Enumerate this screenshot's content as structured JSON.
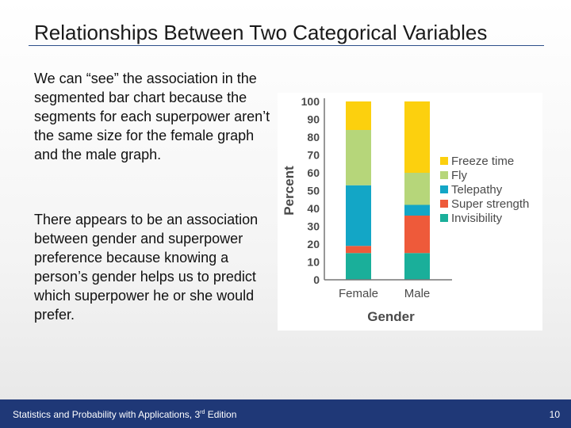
{
  "slide": {
    "title": "Relationships Between Two Categorical Variables",
    "paragraph1": "We can “see” the association in the segmented bar chart because the segments for each superpower aren’t the same size for the female graph and the male graph.",
    "paragraph2": "There appears to be an association between gender and superpower preference because knowing a person’s gender helps us to predict which superpower he or she would prefer."
  },
  "footer": {
    "book_prefix": "Statistics and Probability with Applications, 3",
    "edition_sup": "rd",
    "book_suffix": " Edition",
    "page_number": "10"
  },
  "chart_data": {
    "type": "bar",
    "stacked": true,
    "xlabel": "Gender",
    "ylabel": "Percent",
    "ylim": [
      0,
      100
    ],
    "yticks": [
      "0",
      "10",
      "20",
      "30",
      "40",
      "50",
      "60",
      "70",
      "80",
      "90",
      "100"
    ],
    "categories": [
      "Female",
      "Male"
    ],
    "legend_position": "right",
    "series": [
      {
        "name": "Invisibility",
        "color": "#1aaf9a",
        "values": [
          15,
          15
        ]
      },
      {
        "name": "Super strength",
        "color": "#ee5a3a",
        "values": [
          4,
          21
        ]
      },
      {
        "name": "Telepathy",
        "color": "#13a6c6",
        "values": [
          34,
          6
        ]
      },
      {
        "name": "Fly",
        "color": "#b6d67a",
        "values": [
          31,
          18
        ]
      },
      {
        "name": "Freeze time",
        "color": "#fcd00e",
        "values": [
          16,
          40
        ]
      }
    ]
  }
}
